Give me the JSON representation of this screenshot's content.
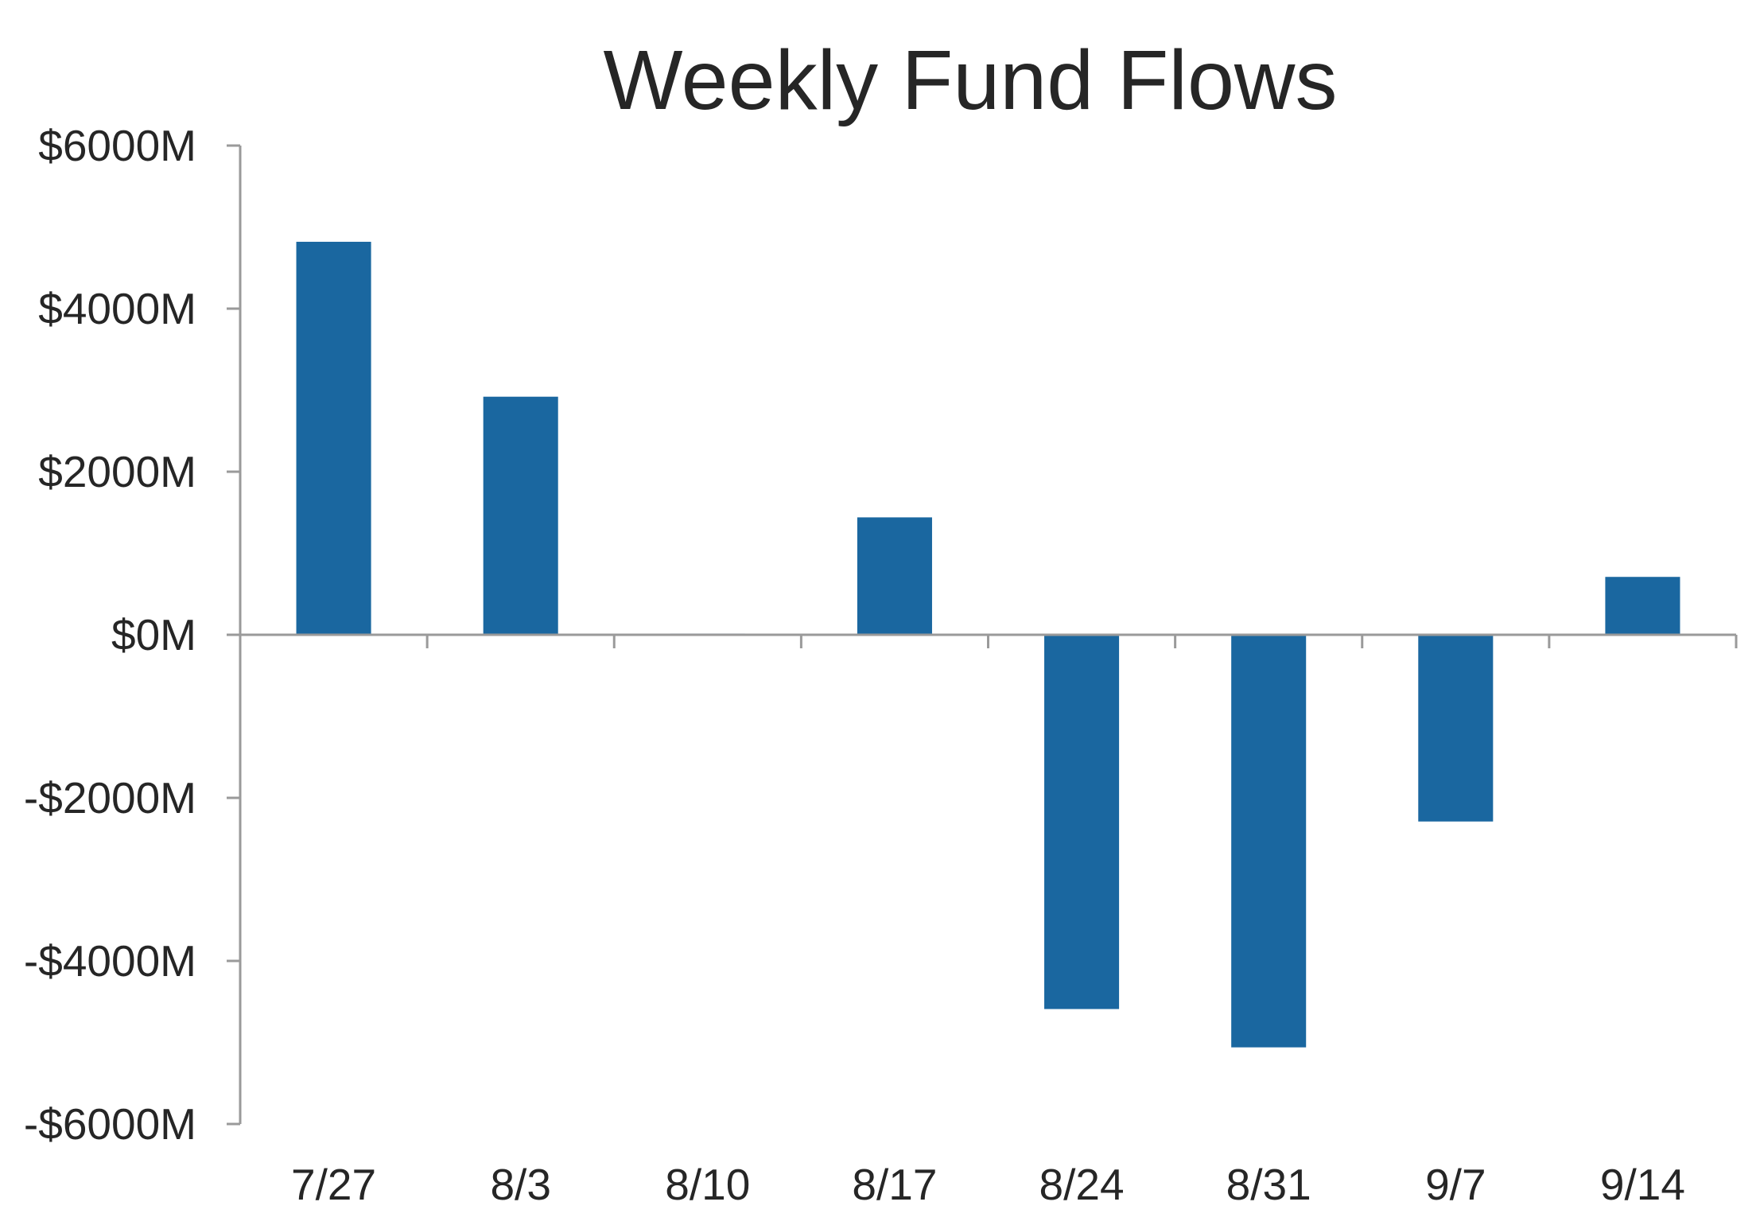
{
  "chart_data": {
    "type": "bar",
    "title": "Weekly Fund Flows",
    "xlabel": "",
    "ylabel": "",
    "categories": [
      "7/27",
      "8/3",
      "8/10",
      "8/17",
      "8/24",
      "8/31",
      "9/7",
      "9/14"
    ],
    "values": [
      4820,
      2920,
      15,
      1440,
      -4590,
      -5060,
      -2290,
      710
    ],
    "ylim": [
      -6000,
      6000
    ],
    "yticks": [
      6000,
      4000,
      2000,
      0,
      -2000,
      -4000,
      -6000
    ],
    "ytick_labels": [
      "$6000M",
      "$4000M",
      "$2000M",
      "$0M",
      "-$2000M",
      "-$4000M",
      "-$6000M"
    ],
    "grid": false,
    "legend": "none",
    "bar_color": "#1a67a0",
    "axis_color": "#9a9a9a",
    "text_color": "#262626"
  }
}
